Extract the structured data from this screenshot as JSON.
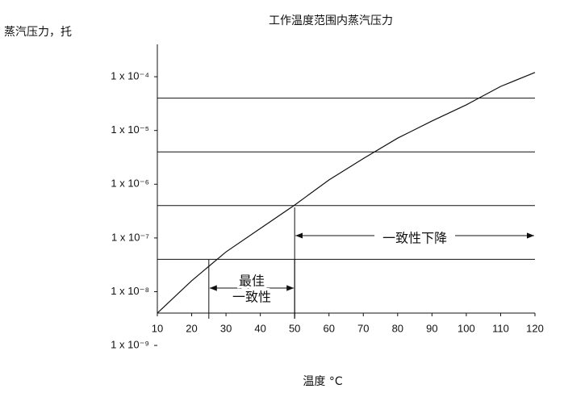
{
  "chart_data": {
    "type": "line",
    "title": "工作温度范围内蒸汽压力",
    "y_label": "蒸汽压力，托",
    "x_label": "温度 °C",
    "log_y": true,
    "x": [
      10,
      20,
      30,
      40,
      50,
      60,
      70,
      80,
      90,
      100,
      110,
      120
    ],
    "series": [
      {
        "name": null,
        "color": "#111111",
        "values": [
          4e-09,
          1.6e-08,
          5.5e-08,
          1.5e-07,
          4.1e-07,
          1.2e-06,
          3e-06,
          7.2e-06,
          1.5e-05,
          3e-05,
          6.6e-05,
          0.00012
        ]
      }
    ],
    "xlim": [
      10,
      120
    ],
    "xticks": [
      10,
      20,
      30,
      40,
      50,
      60,
      70,
      80,
      90,
      100,
      110,
      120
    ],
    "ylim": [
      4e-09,
      0.0004
    ],
    "yticks": [
      {
        "value": 0.0001,
        "label": "1 x 10⁻⁴"
      },
      {
        "value": 1e-05,
        "label": "1 x 10⁻⁵"
      },
      {
        "value": 1e-06,
        "label": "1 x 10⁻⁶"
      },
      {
        "value": 1e-07,
        "label": "1 x 10⁻⁷"
      },
      {
        "value": 1e-08,
        "label": "1 x 10⁻⁸"
      },
      {
        "value": 1e-09,
        "label": "1 x 10⁻⁹"
      }
    ],
    "grid_lines": [
      4e-05,
      4e-06,
      4e-07,
      4e-08
    ],
    "annotations": [
      {
        "lines": [
          "最佳",
          "一致性"
        ],
        "x": [
          25,
          50
        ]
      },
      {
        "lines": [
          "一致性下降"
        ],
        "x": [
          50,
          120
        ]
      }
    ]
  }
}
